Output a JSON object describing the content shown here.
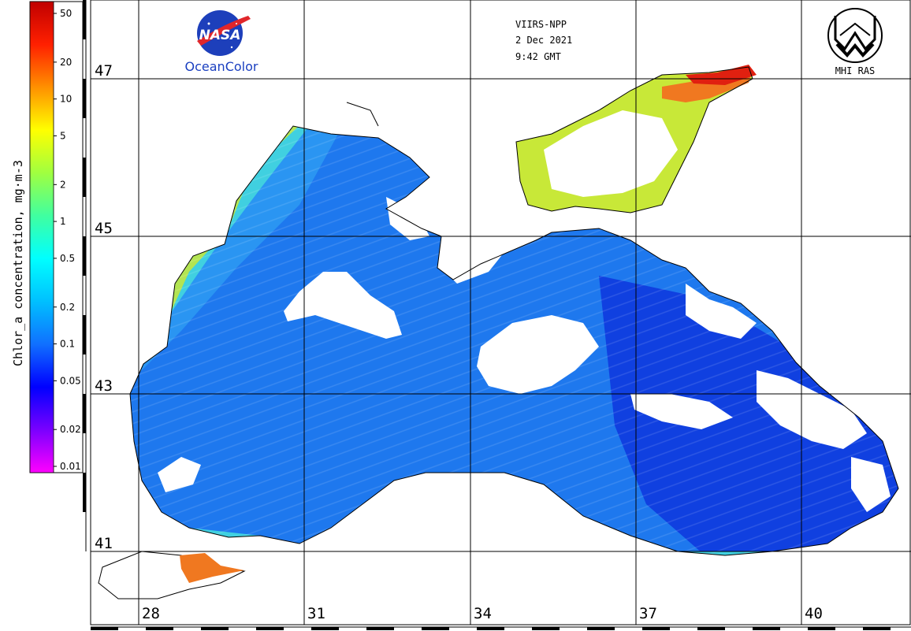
{
  "header": {
    "satellite": "VIIRS-NPP",
    "date": "2 Dec 2021",
    "time": "9:42 GMT"
  },
  "logos": {
    "nasa_text": "NASA",
    "oceancolor_text": "OceanColor",
    "mhi_text": "MHI RAS"
  },
  "colorbar": {
    "title": "Chlor_a concentration, mg·m-3",
    "ticks": [
      "50",
      "20",
      "10",
      "5",
      "2",
      "1",
      "0.5",
      "0.2",
      "0.1",
      "0.05",
      "0.02",
      "0.01"
    ],
    "colors": [
      "#ff00ff",
      "#7a00ff",
      "#0000ff",
      "#1070ff",
      "#00c0ff",
      "#00ffff",
      "#40ffa0",
      "#a0ff40",
      "#ffff00",
      "#ff9000",
      "#ff2000",
      "#c00000"
    ]
  },
  "map": {
    "lat_labels": [
      "47",
      "45",
      "43",
      "41"
    ],
    "lon_labels": [
      "28",
      "31",
      "34",
      "37",
      "40"
    ],
    "colors": {
      "sea_low": "#1e78ee",
      "sea_mid": "#2a95f2",
      "sea_deep": "#1040e0",
      "shelf": "#40d0e0",
      "coastal": "#c8e838",
      "high": "#f07820",
      "very_high": "#e02010",
      "cloud": "#ffffff"
    }
  }
}
